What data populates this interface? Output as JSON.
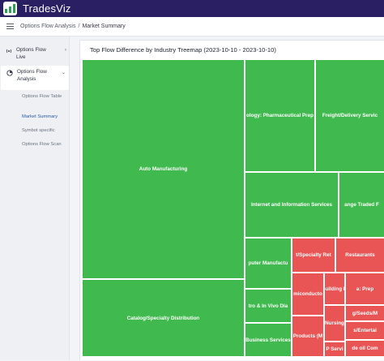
{
  "app": {
    "title": "TradesViz"
  },
  "breadcrumb": {
    "parent": "Options Flow Analysis",
    "separator": "/",
    "current": "Market Summary"
  },
  "sidebar": {
    "live": {
      "label": "Options Flow Live",
      "icon": "radio-wave-icon"
    },
    "analysis": {
      "label": "Options Flow Analysis",
      "icon": "chart-circle-icon"
    },
    "subitems": [
      {
        "label": "Options Flow Table"
      },
      {
        "label": "Market Summary"
      },
      {
        "label": "Symbot specific"
      },
      {
        "label": "Options Flow Scan"
      }
    ]
  },
  "colors": {
    "positive": "#40ba4e",
    "negative": "#e95455",
    "topbar": "#2b1f63"
  },
  "chart_data": {
    "type": "treemap",
    "title": "Top Flow Difference by Industry Treemap (2023-10-10 - 2023-10-10)",
    "tiles": [
      {
        "label": "Auto Manufacturing",
        "sign": "positive"
      },
      {
        "label": "Catalog/Specialty Distribution",
        "sign": "positive"
      },
      {
        "label": "ology: Pharmaceutical Prep",
        "sign": "positive"
      },
      {
        "label": "Freight/Delivery Servic",
        "sign": "positive"
      },
      {
        "label": "Internet and Information Services",
        "sign": "positive"
      },
      {
        "label": "ange Traded F",
        "sign": "positive"
      },
      {
        "label": "puter Manufactu",
        "sign": "positive"
      },
      {
        "label": "tro & In Vivo Dia",
        "sign": "positive"
      },
      {
        "label": "Business Services",
        "sign": "positive"
      },
      {
        "label": "t/Specialty Ret",
        "sign": "negative"
      },
      {
        "label": "Restaurants",
        "sign": "negative"
      },
      {
        "label": "miconducto",
        "sign": "negative"
      },
      {
        "label": "Building M",
        "sign": "negative"
      },
      {
        "label": "a: Prep",
        "sign": "negative"
      },
      {
        "label": "Products (M",
        "sign": "negative"
      },
      {
        "label": "Nursing",
        "sign": "negative"
      },
      {
        "label": "g/Seeds/M",
        "sign": "negative"
      },
      {
        "label": "s/Entertai",
        "sign": "negative"
      },
      {
        "label": "P Servi",
        "sign": "negative"
      },
      {
        "label": "de oil Com",
        "sign": "negative"
      },
      {
        "label": "",
        "sign": "negative"
      },
      {
        "label": "",
        "sign": "negative"
      },
      {
        "label": "",
        "sign": "negative"
      }
    ]
  }
}
